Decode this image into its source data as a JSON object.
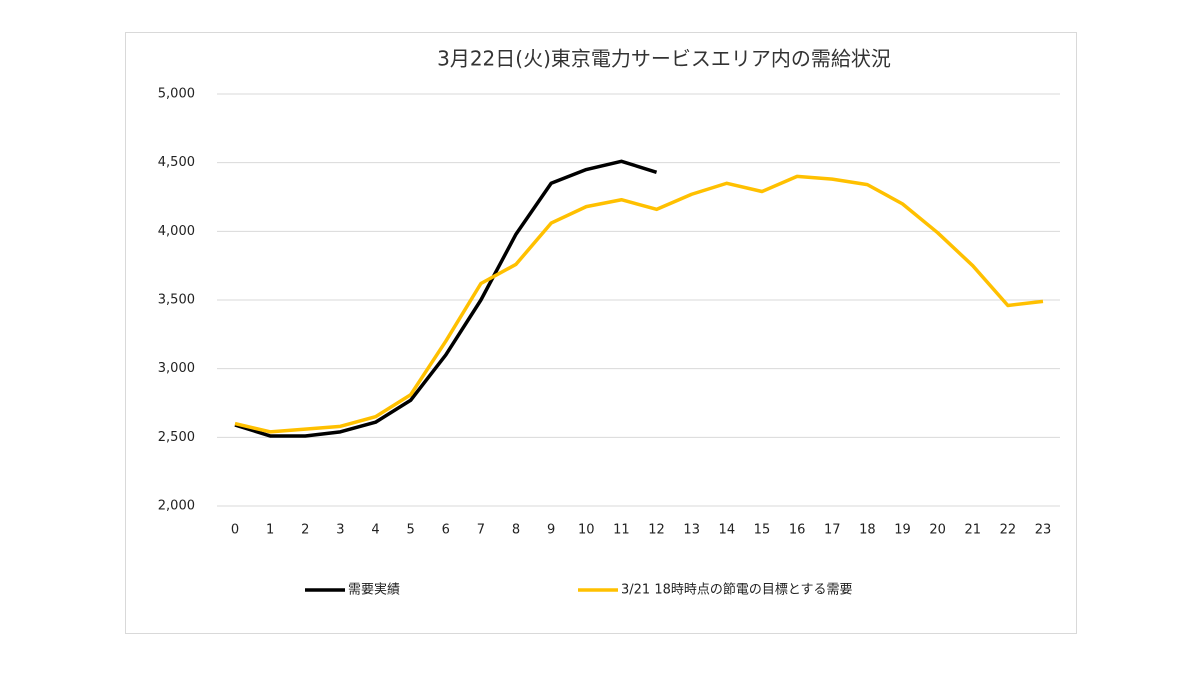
{
  "chart_data": {
    "type": "line",
    "title": "3月22日(火)東京電力サービスエリア内の需給状況",
    "categories": [
      "0",
      "1",
      "2",
      "3",
      "4",
      "5",
      "6",
      "7",
      "8",
      "9",
      "10",
      "11",
      "12",
      "13",
      "14",
      "15",
      "16",
      "17",
      "18",
      "19",
      "20",
      "21",
      "22",
      "23"
    ],
    "series": [
      {
        "name": "需要実績",
        "color": "#000000",
        "values": [
          2590,
          2510,
          2510,
          2540,
          2610,
          2770,
          3100,
          3500,
          3980,
          4350,
          4450,
          4510,
          4430,
          null,
          null,
          null,
          null,
          null,
          null,
          null,
          null,
          null,
          null,
          null
        ]
      },
      {
        "name": "3/21 18時時点の節電の目標とする需要",
        "color": "#ffc000",
        "values": [
          2600,
          2540,
          2560,
          2580,
          2650,
          2810,
          3200,
          3620,
          3760,
          4060,
          4180,
          4230,
          4160,
          4270,
          4350,
          4290,
          4400,
          4380,
          4340,
          4200,
          3990,
          3750,
          3460,
          3490
        ]
      }
    ],
    "ylim": [
      2000,
      5000
    ],
    "yticks": [
      {
        "value": 2000,
        "label": "2,000"
      },
      {
        "value": 2500,
        "label": "2,500"
      },
      {
        "value": 3000,
        "label": "3,000"
      },
      {
        "value": 3500,
        "label": "3,500"
      },
      {
        "value": 4000,
        "label": "4,000"
      },
      {
        "value": 4500,
        "label": "4,500"
      },
      {
        "value": 5000,
        "label": "5,000"
      }
    ],
    "grid": true,
    "legend": "bottom"
  }
}
